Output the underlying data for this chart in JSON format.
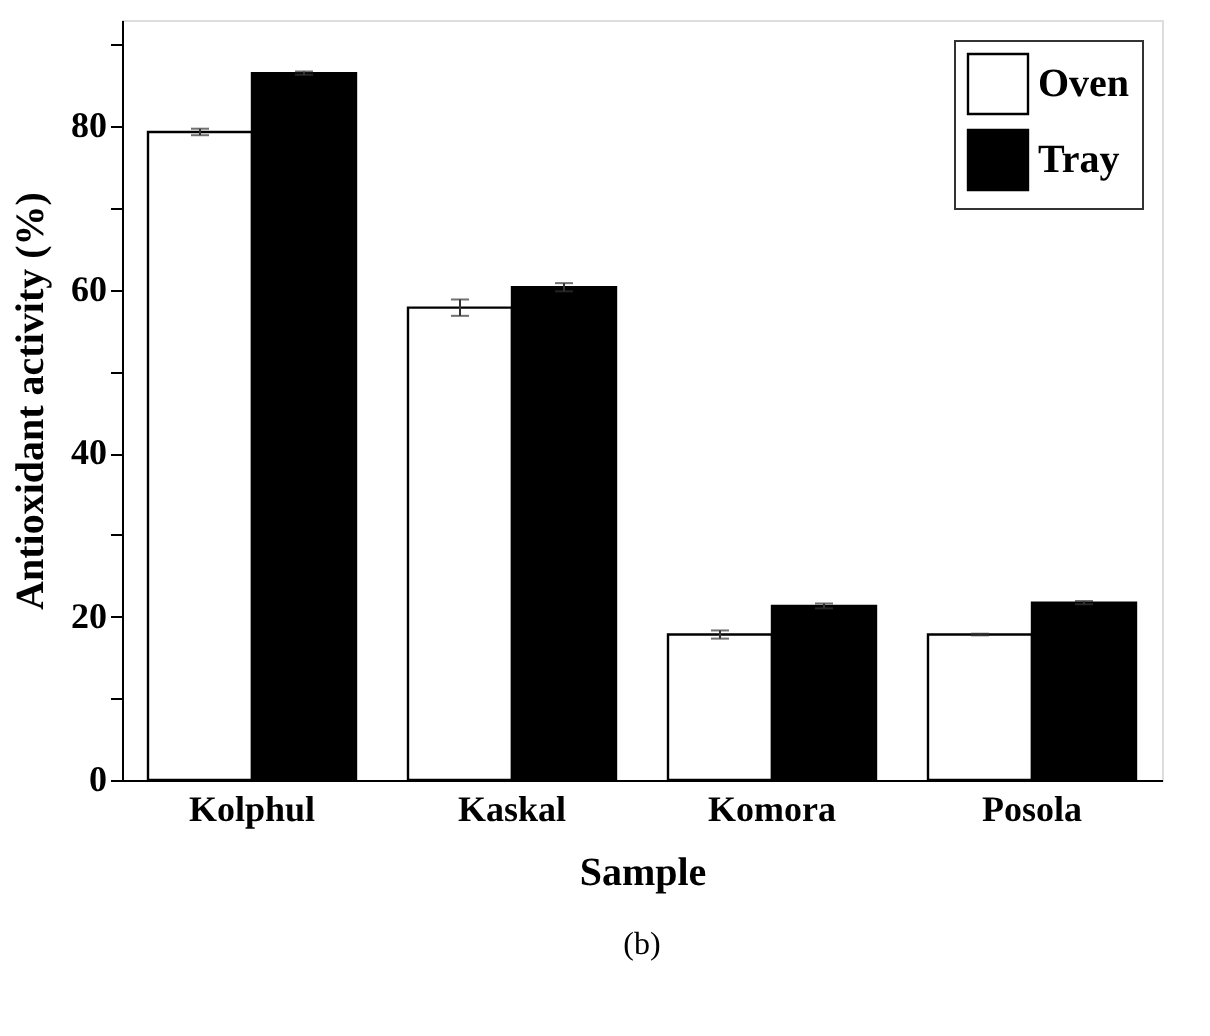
{
  "chart_data": {
    "type": "bar",
    "xlabel": "Sample",
    "ylabel": "Antioxidant activity (%)",
    "categories": [
      "Kolphul",
      "Kaskal",
      "Komora",
      "Posola"
    ],
    "series": [
      {
        "name": "Oven",
        "color": "#ffffff",
        "values": [
          79.3,
          57.8,
          17.8,
          17.8
        ],
        "errors": [
          0.4,
          1.0,
          0.5,
          0.1
        ]
      },
      {
        "name": "Tray",
        "color": "#000000",
        "values": [
          86.5,
          60.3,
          21.3,
          21.7
        ],
        "errors": [
          0.2,
          0.5,
          0.3,
          0.2
        ]
      }
    ],
    "ylim": [
      0,
      93
    ],
    "yticks": [
      0,
      {
        "value": 10,
        "label": null
      },
      20,
      {
        "value": 30,
        "label": null
      },
      40,
      {
        "value": 50,
        "label": null
      },
      60,
      {
        "value": 70,
        "label": null
      },
      80,
      {
        "value": 90,
        "label": null
      }
    ],
    "grid": false,
    "legend": "top right",
    "annotations": [
      "(b)"
    ]
  }
}
